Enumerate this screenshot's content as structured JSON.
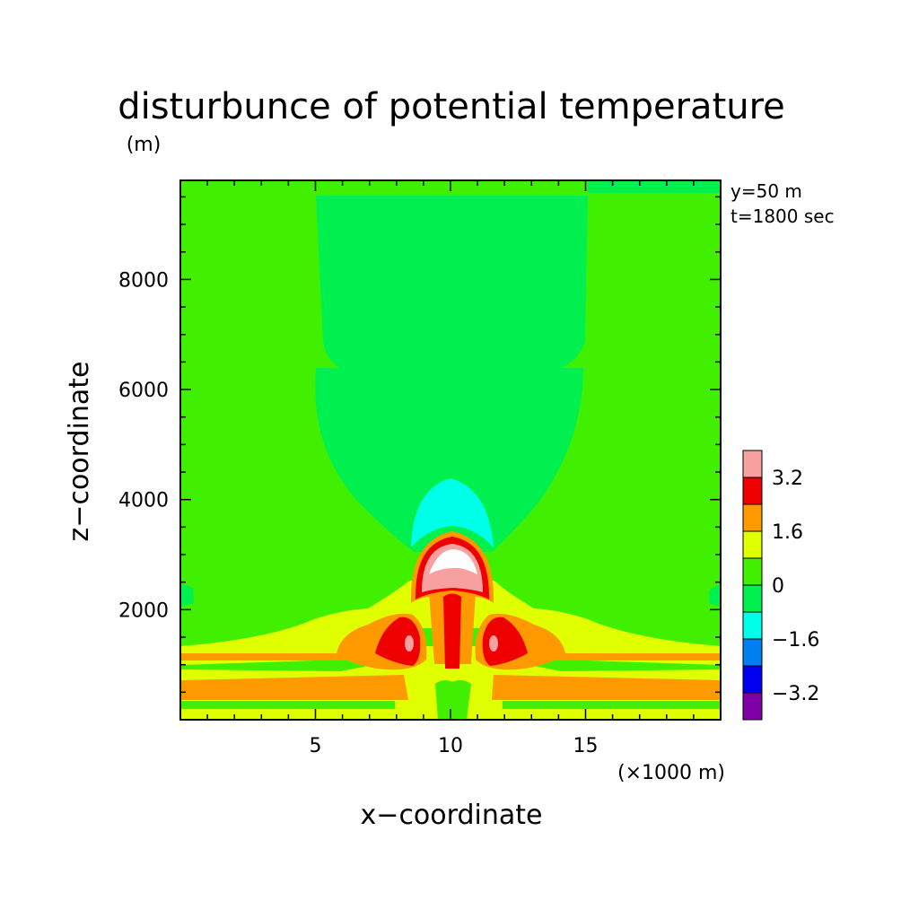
{
  "chart_data": {
    "type": "heatmap",
    "title": "disturbunce of potential temperature",
    "y_unit_label": "(m)",
    "xlabel": "x−coordinate",
    "ylabel": "z−coordinate",
    "x_unit_label": "(×1000 m)",
    "annotations": [
      "y=50 m",
      "t=1800 sec"
    ],
    "xlim": [
      0,
      20
    ],
    "ylim": [
      0,
      9800
    ],
    "x_ticks": [
      5,
      10,
      15
    ],
    "x_tick_labels": [
      "5",
      "10",
      "15"
    ],
    "y_ticks": [
      2000,
      4000,
      6000,
      8000
    ],
    "y_tick_labels": [
      "2000",
      "4000",
      "6000",
      "8000"
    ],
    "grid": false,
    "colorbar": {
      "bins": [
        {
          "lower": -4.0,
          "upper": -3.2,
          "color": "#7f00a6"
        },
        {
          "lower": -3.2,
          "upper": -2.4,
          "color": "#0000f0"
        },
        {
          "lower": -2.4,
          "upper": -1.6,
          "color": "#0080f0"
        },
        {
          "lower": -1.6,
          "upper": -0.8,
          "color": "#00ffe8"
        },
        {
          "lower": -0.8,
          "upper": 0.0,
          "color": "#00f050"
        },
        {
          "lower": 0.0,
          "upper": 0.8,
          "color": "#40f000"
        },
        {
          "lower": 0.8,
          "upper": 1.6,
          "color": "#e0ff00"
        },
        {
          "lower": 1.6,
          "upper": 2.4,
          "color": "#ff9900"
        },
        {
          "lower": 2.4,
          "upper": 3.2,
          "color": "#ee0000"
        },
        {
          "lower": 3.2,
          "upper": 4.0,
          "color": "#f7a0a0"
        }
      ],
      "tick_values": [
        3.2,
        1.6,
        0,
        -1.6,
        -3.2
      ],
      "tick_labels": [
        "3.2",
        "1.6",
        "0",
        "−1.6",
        "−3.2"
      ]
    },
    "colors": {
      "background_level": "#40f000",
      "cool_upper_region": "#00f050",
      "cold_cap": "#00ffe8",
      "warm_layers": "#e0ff00",
      "warmer_layers": "#ff9900",
      "hot_core": "#ee0000",
      "hottest_core": "#f7a0a0",
      "peak": "#ffffff"
    }
  }
}
